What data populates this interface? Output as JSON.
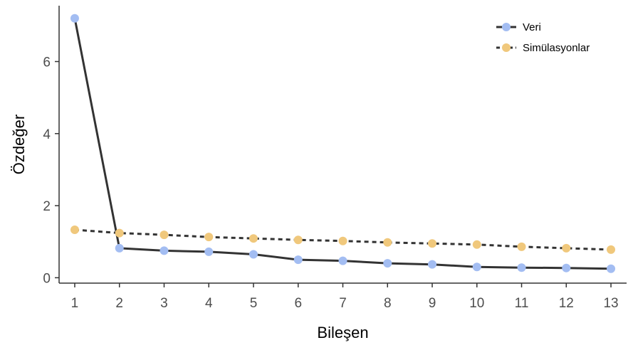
{
  "chart_data": {
    "type": "line",
    "title": "",
    "xlabel": "Bileşen",
    "ylabel": "Özdeğer",
    "x": [
      1,
      2,
      3,
      4,
      5,
      6,
      7,
      8,
      9,
      10,
      11,
      12,
      13
    ],
    "xlim": [
      0.65,
      13.35
    ],
    "ylim": [
      -0.15,
      7.55
    ],
    "yticks": [
      0,
      2,
      4,
      6
    ],
    "grid": false,
    "legend_position": "top-right",
    "series": [
      {
        "name": "Veri",
        "line_style": "solid",
        "line_color": "#333333",
        "marker_color": "#a3bdf2",
        "values": [
          7.2,
          0.82,
          0.75,
          0.72,
          0.65,
          0.5,
          0.47,
          0.4,
          0.37,
          0.3,
          0.28,
          0.27,
          0.25
        ]
      },
      {
        "name": "Simülasyonlar",
        "line_style": "dashed",
        "line_color": "#333333",
        "marker_color": "#f0c87c",
        "values": [
          1.33,
          1.24,
          1.19,
          1.13,
          1.09,
          1.05,
          1.02,
          0.98,
          0.95,
          0.92,
          0.86,
          0.82,
          0.78
        ]
      }
    ]
  }
}
